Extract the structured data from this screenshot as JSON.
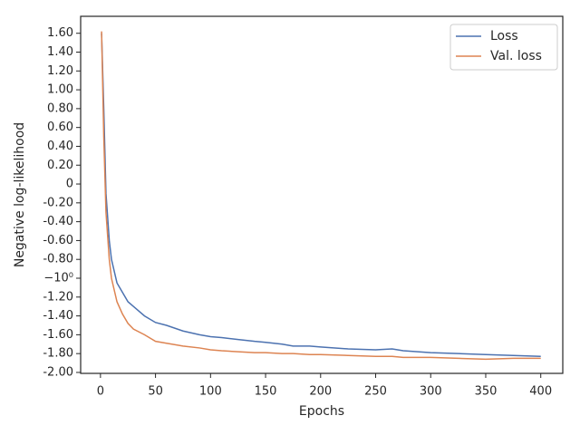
{
  "chart_data": {
    "type": "line",
    "x_label": "Epochs",
    "y_label": "Negative log-likelihood",
    "x": [
      1,
      3,
      5,
      8,
      10,
      15,
      20,
      25,
      30,
      40,
      50,
      60,
      75,
      90,
      100,
      110,
      125,
      140,
      150,
      165,
      175,
      190,
      200,
      225,
      250,
      265,
      275,
      300,
      325,
      350,
      375,
      400
    ],
    "series": [
      {
        "name": "Loss",
        "color": "#4c72b0",
        "values": [
          1.6,
          0.8,
          -0.1,
          -0.6,
          -0.8,
          -1.05,
          -1.15,
          -1.25,
          -1.3,
          -1.4,
          -1.47,
          -1.5,
          -1.56,
          -1.6,
          -1.62,
          -1.63,
          -1.65,
          -1.67,
          -1.68,
          -1.7,
          -1.72,
          -1.72,
          -1.73,
          -1.75,
          -1.76,
          -1.75,
          -1.77,
          -1.79,
          -1.8,
          -1.81,
          -1.82,
          -1.83
        ]
      },
      {
        "name": "Val. loss",
        "color": "#dd8452",
        "values": [
          1.62,
          0.5,
          -0.3,
          -0.8,
          -1.0,
          -1.25,
          -1.38,
          -1.48,
          -1.54,
          -1.6,
          -1.67,
          -1.69,
          -1.72,
          -1.74,
          -1.76,
          -1.77,
          -1.78,
          -1.79,
          -1.79,
          -1.8,
          -1.8,
          -1.81,
          -1.81,
          -1.82,
          -1.83,
          -1.83,
          -1.84,
          -1.84,
          -1.85,
          -1.86,
          -1.85,
          -1.85
        ]
      }
    ],
    "xlim": [
      -18,
      420
    ],
    "xticks": [
      0,
      50,
      100,
      150,
      200,
      250,
      300,
      350,
      400
    ],
    "ylim": [
      -2.01,
      1.78
    ],
    "yticks": [
      {
        "value": 1.6,
        "label": "1.60"
      },
      {
        "value": 1.4,
        "label": "1.40"
      },
      {
        "value": 1.2,
        "label": "1.20"
      },
      {
        "value": 1.0,
        "label": "1.00"
      },
      {
        "value": 0.8,
        "label": "0.80"
      },
      {
        "value": 0.6,
        "label": "0.60"
      },
      {
        "value": 0.4,
        "label": "0.40"
      },
      {
        "value": 0.2,
        "label": "0.20"
      },
      0,
      {
        "value": -0.2,
        "label": "-0.20"
      },
      {
        "value": -0.4,
        "label": "-0.40"
      },
      {
        "value": -0.6,
        "label": "-0.60"
      },
      {
        "value": -0.8,
        "label": "-0.80"
      },
      {
        "value": -1.0,
        "label": "−10⁰"
      },
      {
        "value": -1.2,
        "label": "-1.20"
      },
      {
        "value": -1.4,
        "label": "-1.40"
      },
      {
        "value": -1.6,
        "label": "-1.60"
      },
      {
        "value": -1.8,
        "label": "-1.80"
      },
      {
        "value": -2.0,
        "label": "-2.00"
      }
    ],
    "legend": "upper right"
  }
}
